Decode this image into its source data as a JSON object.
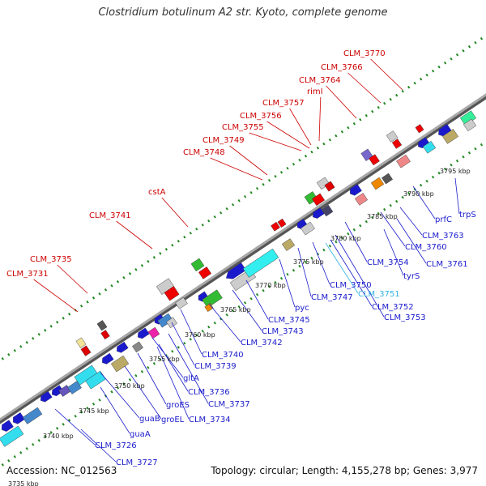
{
  "title": "Clostridium botulinum A2 str. Kyoto, complete genome",
  "footer": {
    "accession": "Accession: NC_012563",
    "topology": "Topology: circular; Length: 4,155,278 bp; Genes: 3,977"
  },
  "colors": {
    "backbone": "#808080",
    "forward_label": "#cc0000",
    "reverse_label": "#1a1acc",
    "selected_label": "#33b3e6",
    "dots": "#228822"
  },
  "kbp_ticks": [
    "3735 kbp",
    "3740 kbp",
    "3745 kbp",
    "3750 kbp",
    "3755 kbp",
    "3760 kbp",
    "3765 kbp",
    "3770 kbp",
    "3775 kbp",
    "3780 kbp",
    "3785 kbp",
    "3790 kbp",
    "3795 kbp"
  ],
  "top_labels": [
    "CLM_3731",
    "CLM_3735",
    "CLM_3741",
    "cstA",
    "CLM_3748",
    "CLM_3749",
    "CLM_3755",
    "CLM_3756",
    "CLM_3757",
    "rimI",
    "CLM_3764",
    "CLM_3766",
    "CLM_3770"
  ],
  "bottom_labels": [
    "CLM_3727",
    "CLM_3726",
    "guaA",
    "guaB",
    "groEL",
    "groES",
    "CLM_3734",
    "CLM_3737",
    "CLM_3736",
    "gltA",
    "CLM_3739",
    "CLM_3740",
    "CLM_3742",
    "CLM_3743",
    "CLM_3745",
    "pyc",
    "CLM_3747",
    "CLM_3750",
    "CLM_3751",
    "CLM_3752",
    "CLM_3753",
    "tyrS",
    "CLM_3754",
    "CLM_3761",
    "CLM_3760",
    "CLM_3763",
    "prfC",
    "trpS"
  ]
}
